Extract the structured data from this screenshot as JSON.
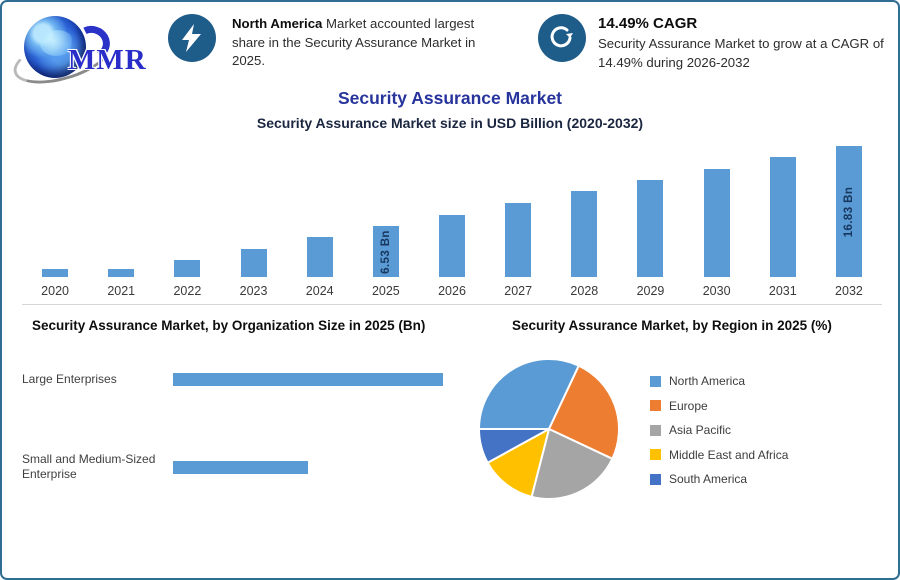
{
  "page": {
    "border_color": "#2f6d93",
    "background": "#ffffff"
  },
  "logo": {
    "text": "MMR"
  },
  "header": {
    "icon_circle_color": "#1e5c8a",
    "callout1": {
      "icon": "lightning-icon",
      "bold": "North America",
      "text": " Market accounted largest share in the Security Assurance Market in 2025."
    },
    "callout2": {
      "icon": "growth-swirl-icon",
      "heading": "14.49% CAGR",
      "text": "Security Assurance Market to grow at a CAGR of 14.49% during 2026-2032"
    }
  },
  "titles": {
    "main": "Security Assurance Market",
    "subtitle": "Security Assurance Market size in USD Billion (2020-2032)"
  },
  "colors": {
    "primary_bar": "#5b9bd5",
    "title_blue": "#27349c",
    "subtitle_navy": "#1b2640",
    "bar_value_label": "#17375e"
  },
  "chart_data": [
    {
      "type": "bar",
      "title": "Security Assurance Market size in USD Billion (2020-2032)",
      "categories": [
        "2020",
        "2021",
        "2022",
        "2023",
        "2024",
        "2025",
        "2026",
        "2027",
        "2028",
        "2029",
        "2030",
        "2031",
        "2032"
      ],
      "values": [
        1.0,
        1.05,
        2.2,
        3.6,
        5.2,
        6.53,
        8.0,
        9.5,
        11.0,
        12.5,
        13.9,
        15.4,
        16.83
      ],
      "unit": "USD Bn",
      "bar_color": "#5b9bd5",
      "data_labels": {
        "2025": "6.53 Bn",
        "2032": "16.83 Bn"
      },
      "ylim": [
        0,
        17.5
      ],
      "grid": false,
      "legend_position": "none"
    },
    {
      "type": "bar",
      "orientation": "horizontal",
      "title": "Security Assurance Market, by Organization Size in 2025 (Bn)",
      "categories": [
        "Large Enterprises",
        "Small and Medium-Sized Enterprise"
      ],
      "values": [
        4.35,
        2.18
      ],
      "unit": "USD Bn",
      "bar_color": "#5b9bd5",
      "xlim": [
        0,
        4.7
      ],
      "grid": false,
      "legend_position": "none"
    },
    {
      "type": "pie",
      "title": "Security Assurance Market, by Region in 2025 (%)",
      "labels": [
        "North America",
        "Europe",
        "Asia Pacific",
        "Middle East and Africa",
        "South America"
      ],
      "values": [
        32,
        25,
        22,
        13,
        8
      ],
      "colors": [
        "#5b9bd5",
        "#ed7d31",
        "#a5a5a5",
        "#ffc000",
        "#4472c4"
      ],
      "start_angle_deg": 270,
      "legend_position": "right"
    }
  ]
}
